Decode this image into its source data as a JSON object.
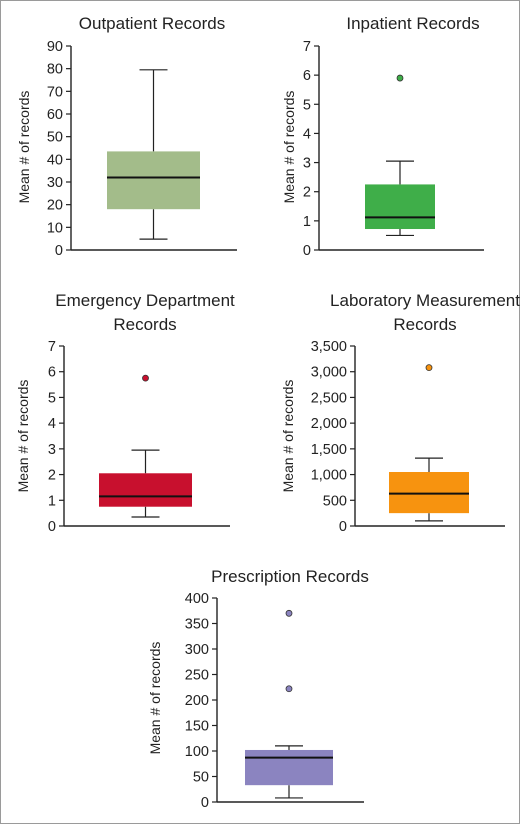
{
  "chart_data": [
    {
      "type": "box",
      "title_lines": [
        "Outpatient Records"
      ],
      "ylabel": "Mean # of records",
      "ylim": [
        0,
        90
      ],
      "yticks": [
        0,
        10,
        20,
        30,
        40,
        50,
        60,
        70,
        80,
        90
      ],
      "ytick_labels": [
        "0",
        "10",
        "20",
        "30",
        "40",
        "50",
        "60",
        "70",
        "80",
        "90"
      ],
      "whisker_low": 4.8,
      "q1": 18,
      "median": 32,
      "q3": 43.5,
      "whisker_high": 79.5,
      "outliers": [],
      "box_color": "#a3bc8a",
      "outlier_color": null,
      "grid": false
    },
    {
      "type": "box",
      "title_lines": [
        "Inpatient Records"
      ],
      "ylabel": "Mean # of records",
      "ylim": [
        0,
        7
      ],
      "yticks": [
        0,
        1,
        2,
        3,
        4,
        5,
        6,
        7
      ],
      "ytick_labels": [
        "0",
        "1",
        "2",
        "3",
        "4",
        "5",
        "6",
        "7"
      ],
      "whisker_low": 0.5,
      "q1": 0.72,
      "median": 1.12,
      "q3": 2.25,
      "whisker_high": 3.05,
      "outliers": [
        5.9
      ],
      "box_color": "#3fae49",
      "outlier_color": "#3fae49",
      "grid": false
    },
    {
      "type": "box",
      "title_lines": [
        "Emergency Department",
        "Records"
      ],
      "ylabel": "Mean # of records",
      "ylim": [
        0,
        7
      ],
      "yticks": [
        0,
        1,
        2,
        3,
        4,
        5,
        6,
        7
      ],
      "ytick_labels": [
        "0",
        "1",
        "2",
        "3",
        "4",
        "5",
        "6",
        "7"
      ],
      "whisker_low": 0.35,
      "q1": 0.75,
      "median": 1.15,
      "q3": 2.05,
      "whisker_high": 2.95,
      "outliers": [
        5.75
      ],
      "box_color": "#c8102e",
      "outlier_color": "#c8102e",
      "grid": false
    },
    {
      "type": "box",
      "title_lines": [
        "Laboratory Measurement",
        "Records"
      ],
      "ylabel": "Mean # of records",
      "ylim": [
        0,
        3500
      ],
      "yticks": [
        0,
        500,
        1000,
        1500,
        2000,
        2500,
        3000,
        3500
      ],
      "ytick_labels": [
        "0",
        "500",
        "1,000",
        "1,500",
        "2,000",
        "2,500",
        "3,000",
        "3,500"
      ],
      "whisker_low": 100,
      "q1": 250,
      "median": 630,
      "q3": 1050,
      "whisker_high": 1320,
      "outliers": [
        3080
      ],
      "box_color": "#f7930f",
      "outlier_color": "#f7930f",
      "grid": false
    },
    {
      "type": "box",
      "title_lines": [
        "Prescription Records"
      ],
      "ylabel": "Mean # of records",
      "ylim": [
        0,
        400
      ],
      "yticks": [
        0,
        50,
        100,
        150,
        200,
        250,
        300,
        350,
        400
      ],
      "ytick_labels": [
        "0",
        "50",
        "100",
        "150",
        "200",
        "250",
        "300",
        "350",
        "400"
      ],
      "whisker_low": 8,
      "q1": 33,
      "median": 87,
      "q3": 102,
      "whisker_high": 110,
      "outliers": [
        222,
        370
      ],
      "box_color": "#8b84c0",
      "outlier_color": "#8b84c0",
      "grid": false
    }
  ]
}
